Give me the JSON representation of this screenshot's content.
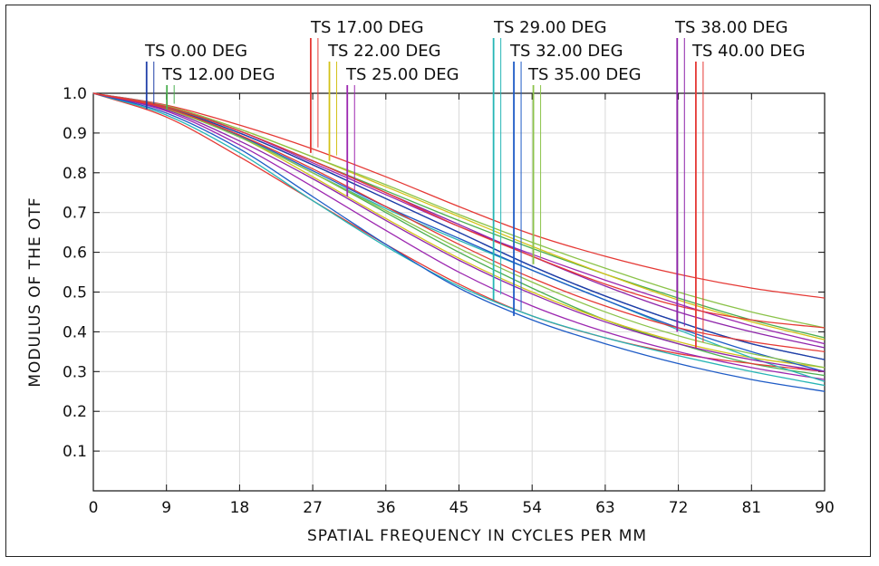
{
  "chart_data": {
    "type": "line",
    "xlabel": "SPATIAL FREQUENCY IN CYCLES PER MM",
    "ylabel": "MODULUS OF THE OTF",
    "xlim": [
      0,
      90
    ],
    "ylim": [
      0,
      1.0
    ],
    "x_ticks": [
      0,
      9,
      18,
      27,
      36,
      45,
      54,
      63,
      72,
      81,
      90
    ],
    "y_ticks": [
      0.1,
      0.2,
      0.3,
      0.4,
      0.5,
      0.6,
      0.7,
      0.8,
      0.9,
      1.0
    ],
    "x_tick_labels": [
      "0",
      "9",
      "18",
      "27",
      "36",
      "45",
      "54",
      "63",
      "72",
      "81",
      "90"
    ],
    "y_tick_labels": [
      "0.1",
      "0.2",
      "0.3",
      "0.4",
      "0.5",
      "0.6",
      "0.7",
      "0.8",
      "0.9",
      "1.0"
    ],
    "grid": true,
    "x_sample": [
      0,
      9,
      18,
      27,
      36,
      45,
      54,
      63,
      72,
      81,
      90
    ],
    "series": [
      {
        "name": "TS 0.00 DEG",
        "field": "T",
        "color": "#1f3fa8",
        "values": [
          1.0,
          0.963,
          0.9,
          0.82,
          0.735,
          0.65,
          0.565,
          0.49,
          0.425,
          0.37,
          0.33
        ]
      },
      {
        "name": "TS 0.00 DEG",
        "field": "S",
        "color": "#1f3fa8",
        "values": [
          1.0,
          0.963,
          0.9,
          0.82,
          0.735,
          0.65,
          0.565,
          0.49,
          0.425,
          0.37,
          0.33
        ]
      },
      {
        "name": "TS 12.00 DEG",
        "field": "T",
        "color": "#4caf50",
        "values": [
          1.0,
          0.96,
          0.89,
          0.8,
          0.7,
          0.6,
          0.51,
          0.43,
          0.37,
          0.32,
          0.29
        ]
      },
      {
        "name": "TS 12.00 DEG",
        "field": "S",
        "color": "#4caf50",
        "values": [
          1.0,
          0.965,
          0.905,
          0.83,
          0.755,
          0.68,
          0.61,
          0.545,
          0.485,
          0.43,
          0.385
        ]
      },
      {
        "name": "TS 17.00 DEG",
        "field": "T",
        "color": "#e53935",
        "values": [
          1.0,
          0.94,
          0.84,
          0.73,
          0.62,
          0.52,
          0.44,
          0.385,
          0.345,
          0.32,
          0.3
        ]
      },
      {
        "name": "TS 17.00 DEG",
        "field": "S",
        "color": "#e53935",
        "values": [
          1.0,
          0.97,
          0.92,
          0.86,
          0.79,
          0.715,
          0.645,
          0.59,
          0.545,
          0.51,
          0.485
        ]
      },
      {
        "name": "TS 22.00 DEG",
        "field": "T",
        "color": "#d4c21a",
        "values": [
          1.0,
          0.96,
          0.89,
          0.79,
          0.685,
          0.585,
          0.5,
          0.43,
          0.375,
          0.335,
          0.31
        ]
      },
      {
        "name": "TS 22.00 DEG",
        "field": "S",
        "color": "#d4c21a",
        "values": [
          1.0,
          0.968,
          0.91,
          0.84,
          0.765,
          0.69,
          0.615,
          0.545,
          0.48,
          0.425,
          0.38
        ]
      },
      {
        "name": "TS 25.00 DEG",
        "field": "T",
        "color": "#9c27b0",
        "values": [
          1.0,
          0.955,
          0.87,
          0.765,
          0.655,
          0.55,
          0.465,
          0.4,
          0.35,
          0.31,
          0.28
        ]
      },
      {
        "name": "TS 25.00 DEG",
        "field": "S",
        "color": "#9c27b0",
        "values": [
          1.0,
          0.968,
          0.905,
          0.825,
          0.745,
          0.665,
          0.595,
          0.53,
          0.47,
          0.415,
          0.37
        ]
      },
      {
        "name": "TS 29.00 DEG",
        "field": "T",
        "color": "#26b5b5",
        "values": [
          1.0,
          0.945,
          0.85,
          0.73,
          0.615,
          0.515,
          0.44,
          0.385,
          0.34,
          0.3,
          0.265
        ]
      },
      {
        "name": "TS 29.00 DEG",
        "field": "S",
        "color": "#26b5b5",
        "values": [
          1.0,
          0.962,
          0.89,
          0.8,
          0.71,
          0.63,
          0.555,
          0.48,
          0.405,
          0.335,
          0.275
        ]
      },
      {
        "name": "TS 32.00 DEG",
        "field": "T",
        "color": "#1e5bc6",
        "values": [
          1.0,
          0.95,
          0.86,
          0.74,
          0.62,
          0.51,
          0.43,
          0.37,
          0.32,
          0.28,
          0.25
        ]
      },
      {
        "name": "TS 32.00 DEG",
        "field": "S",
        "color": "#1e5bc6",
        "values": [
          1.0,
          0.962,
          0.893,
          0.805,
          0.715,
          0.635,
          0.555,
          0.48,
          0.41,
          0.35,
          0.3
        ]
      },
      {
        "name": "TS 35.00 DEG",
        "field": "T",
        "color": "#8bc34a",
        "values": [
          1.0,
          0.96,
          0.89,
          0.8,
          0.705,
          0.61,
          0.525,
          0.45,
          0.39,
          0.345,
          0.31
        ]
      },
      {
        "name": "TS 35.00 DEG",
        "field": "S",
        "color": "#8bc34a",
        "values": [
          1.0,
          0.968,
          0.91,
          0.84,
          0.77,
          0.695,
          0.625,
          0.56,
          0.5,
          0.45,
          0.41
        ]
      },
      {
        "name": "TS 38.00 DEG",
        "field": "T",
        "color": "#8e24aa",
        "values": [
          1.0,
          0.958,
          0.88,
          0.785,
          0.68,
          0.58,
          0.495,
          0.425,
          0.37,
          0.33,
          0.3
        ]
      },
      {
        "name": "TS 38.00 DEG",
        "field": "S",
        "color": "#8e24aa",
        "values": [
          1.0,
          0.966,
          0.905,
          0.83,
          0.75,
          0.67,
          0.59,
          0.515,
          0.45,
          0.4,
          0.36
        ]
      },
      {
        "name": "TS 40.00 DEG",
        "field": "T",
        "color": "#e53935",
        "values": [
          1.0,
          0.962,
          0.895,
          0.81,
          0.715,
          0.62,
          0.535,
          0.465,
          0.41,
          0.375,
          0.35
        ]
      },
      {
        "name": "TS 40.00 DEG",
        "field": "S",
        "color": "#e53935",
        "values": [
          1.0,
          0.966,
          0.905,
          0.83,
          0.75,
          0.665,
          0.59,
          0.52,
          0.465,
          0.43,
          0.41
        ]
      }
    ],
    "legend": [
      {
        "label": "TS 0.00 DEG",
        "color": "#1f3fa8",
        "color2": "#1f3fa8",
        "x": 7,
        "y_end": 0.96
      },
      {
        "label": "TS 12.00 DEG",
        "color": "#4caf50",
        "color2": "#4caf50",
        "x": 9.5,
        "y_end": 0.96
      },
      {
        "label": "TS 17.00 DEG",
        "color": "#e53935",
        "color2": "#e53935",
        "x": 27.2,
        "y_end": 0.85
      },
      {
        "label": "TS 22.00 DEG",
        "color": "#d4c21a",
        "color2": "#d4c21a",
        "x": 29.5,
        "y_end": 0.83
      },
      {
        "label": "TS 25.00 DEG",
        "color": "#9c27b0",
        "color2": "#9c27b0",
        "x": 31.7,
        "y_end": 0.74
      },
      {
        "label": "TS 29.00 DEG",
        "color": "#26b5b5",
        "color2": "#26b5b5",
        "x": 49.7,
        "y_end": 0.48
      },
      {
        "label": "TS 32.00 DEG",
        "color": "#1e5bc6",
        "color2": "#1e5bc6",
        "x": 52.2,
        "y_end": 0.44
      },
      {
        "label": "TS 35.00 DEG",
        "color": "#8bc34a",
        "color2": "#8bc34a",
        "x": 54.6,
        "y_end": 0.57
      },
      {
        "label": "TS 38.00 DEG",
        "color": "#8e24aa",
        "color2": "#8e24aa",
        "x": 72.3,
        "y_end": 0.4
      },
      {
        "label": "TS 40.00 DEG",
        "color": "#e53935",
        "color2": "#e53935",
        "x": 74.6,
        "y_end": 0.36
      }
    ]
  }
}
